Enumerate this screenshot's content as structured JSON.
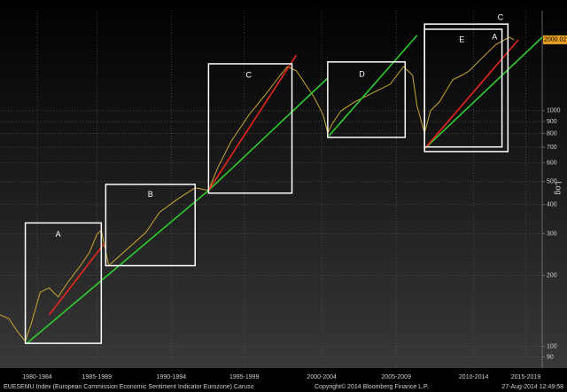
{
  "chart_data": {
    "type": "line",
    "log_y": true,
    "grid": true,
    "title": "EUESEMU Index (European Commission Economic Sentiment Indicator Eurozone) Caruso",
    "copyright": "Copyright© 2014 Bloomberg Finance L.P.",
    "timestamp": "27-Aug-2014 12:49:58",
    "y_label": "Log",
    "last_value": 2000.02,
    "xlim": [
      1981,
      2017.4
    ],
    "ylim": [
      83,
      2660
    ],
    "xticks": [
      {
        "value": 1983.5,
        "label": "1980-1984"
      },
      {
        "value": 1987.5,
        "label": "1985-1989"
      },
      {
        "value": 1992.5,
        "label": "1990-1994"
      },
      {
        "value": 1997.4,
        "label": "1995-1999"
      },
      {
        "value": 2002.6,
        "label": "2000-2004"
      },
      {
        "value": 2007.6,
        "label": "2005-2009"
      },
      {
        "value": 2012.8,
        "label": "2010-2014"
      },
      {
        "value": 2016.3,
        "label": "2015-2019"
      }
    ],
    "yticks": [
      90,
      100,
      200,
      300,
      400,
      500,
      600,
      700,
      800,
      900,
      1000
    ],
    "color": "#c9a834",
    "x": [
      1981.0,
      1981.6,
      1982.2,
      1982.7,
      1983.1,
      1983.7,
      1984.3,
      1984.9,
      1985.5,
      1986.4,
      1987.0,
      1987.5,
      1987.8,
      1988.3,
      1990.8,
      1991.7,
      1992.9,
      1994.1,
      1995.0,
      1995.6,
      1996.5,
      1997.7,
      1998.9,
      1999.8,
      2000.3,
      2000.9,
      2001.5,
      2002.1,
      2002.7,
      2003.0,
      2003.3,
      2003.9,
      2004.8,
      2006.0,
      2007.2,
      2008.1,
      2008.7,
      2009.0,
      2009.5,
      2009.9,
      2010.5,
      2011.4,
      2012.0,
      2012.5,
      2013.4,
      2014.3,
      2015.2,
      2015.5
    ],
    "values": [
      136,
      131,
      115,
      105,
      125,
      170,
      177,
      162,
      185,
      220,
      250,
      298,
      311,
      220,
      305,
      370,
      421,
      471,
      459,
      570,
      738,
      958,
      1189,
      1413,
      1541,
      1477,
      1297,
      1138,
      958,
      805,
      879,
      1000,
      1090,
      1189,
      1297,
      1541,
      1413,
      1045,
      805,
      1000,
      1090,
      1355,
      1413,
      1477,
      1683,
      1914,
      2051,
      2000
    ],
    "boxes": [
      {
        "xlim": [
          1982.7,
          1987.8
        ],
        "ylim": [
          103,
          334
        ]
      },
      {
        "xlim": [
          1988.1,
          1994.1
        ],
        "ylim": [
          220,
          487
        ]
      },
      {
        "xlim": [
          1995.0,
          2000.6
        ],
        "ylim": [
          447,
          1582
        ]
      },
      {
        "xlim": [
          2003.0,
          2008.2
        ],
        "ylim": [
          771,
          1611
        ]
      },
      {
        "xlim": [
          2009.5,
          2015.1
        ],
        "ylim": [
          671,
          2333
        ]
      },
      {
        "xlim": [
          2009.5,
          2014.7
        ],
        "ylim": [
          702,
          2218
        ]
      }
    ],
    "labels": [
      {
        "text": "A",
        "x": 1984.9,
        "y": 298
      },
      {
        "text": "B",
        "x": 1991.1,
        "y": 440
      },
      {
        "text": "C",
        "x": 1997.7,
        "y": 1413
      },
      {
        "text": "D",
        "x": 2005.3,
        "y": 1426
      },
      {
        "text": "E",
        "x": 2012.0,
        "y": 2000
      },
      {
        "text": "C",
        "x": 2014.6,
        "y": 2483
      },
      {
        "text": "A",
        "x": 2014.2,
        "y": 2051
      }
    ],
    "trendlines": [
      {
        "color": "#2ecc2e",
        "x": [
          1982.8,
          1995.0,
          2003.0
        ],
        "y": [
          103,
          459,
          1377
        ]
      },
      {
        "color": "#2ecc2e",
        "x": [
          2003.1,
          2009.0
        ],
        "y": [
          785,
          2089
        ]
      },
      {
        "color": "#2ecc2e",
        "x": [
          2009.5,
          2017.4
        ],
        "y": [
          689,
          2051
        ]
      },
      {
        "color": "#e8261e",
        "x": [
          1984.3,
          1988.0
        ],
        "y": [
          136,
          273
        ]
      },
      {
        "color": "#e8261e",
        "x": [
          1995.0,
          2000.9
        ],
        "y": [
          459,
          1726
        ]
      },
      {
        "color": "#e8261e",
        "x": [
          2009.5,
          2015.8
        ],
        "y": [
          689,
          2000
        ]
      }
    ]
  }
}
